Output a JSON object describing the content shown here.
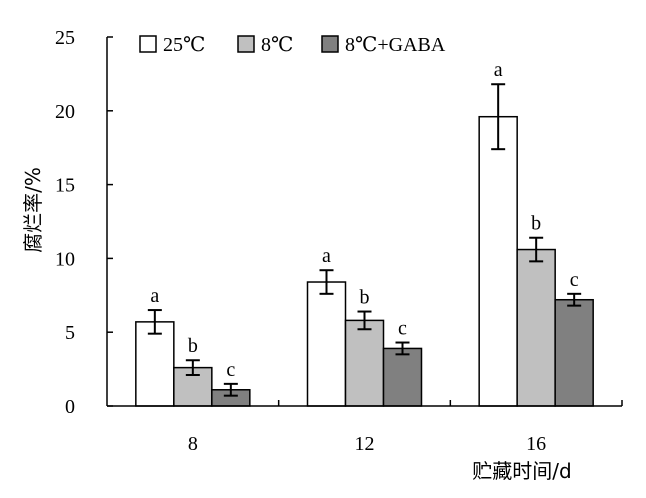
{
  "chart_data": {
    "type": "bar",
    "categories": [
      "8",
      "12",
      "16"
    ],
    "series": [
      {
        "name": "25℃",
        "color": "#ffffff",
        "values": [
          5.7,
          8.4,
          19.6
        ],
        "errors": [
          0.8,
          0.8,
          2.2
        ],
        "letters": [
          "a",
          "a",
          "a"
        ]
      },
      {
        "name": "8℃",
        "color": "#c0c0c0",
        "values": [
          2.6,
          5.8,
          10.6
        ],
        "errors": [
          0.5,
          0.6,
          0.8
        ],
        "letters": [
          "b",
          "b",
          "b"
        ]
      },
      {
        "name": "8℃+GABA",
        "color": "#808080",
        "values": [
          1.1,
          3.9,
          7.2
        ],
        "errors": [
          0.4,
          0.4,
          0.4
        ],
        "letters": [
          "c",
          "c",
          "c"
        ]
      }
    ],
    "xlabel": "贮藏时间/d",
    "ylabel": "腐烂率/%",
    "ylim": [
      0,
      25
    ],
    "yticks": [
      "0",
      "5",
      "10",
      "15",
      "20",
      "25"
    ],
    "legend_position": "top-left",
    "grid": false
  }
}
